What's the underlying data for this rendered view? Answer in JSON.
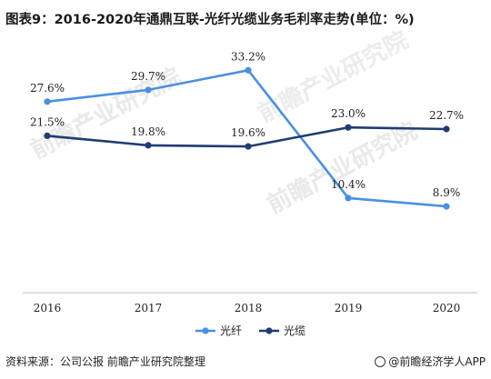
{
  "title": "图表9：2016-2020年通鼎互联-光纤光缆业务毛利率走势(单位：%)",
  "footer": {
    "source": "资料来源：公司公报 前瞻产业研究院整理",
    "brand": "@前瞻经济学人APP"
  },
  "watermark": "前瞻产业研究院",
  "chart_data": {
    "type": "line",
    "categories": [
      "2016",
      "2017",
      "2018",
      "2019",
      "2020"
    ],
    "series": [
      {
        "name": "光纤",
        "color": "#4a90e2",
        "values": [
          27.6,
          29.7,
          33.2,
          10.4,
          8.9
        ],
        "labels": [
          "27.6%",
          "29.7%",
          "33.2%",
          "10.4%",
          "8.9%"
        ]
      },
      {
        "name": "光缆",
        "color": "#1f3d73",
        "values": [
          21.5,
          19.8,
          19.6,
          23.0,
          22.7
        ],
        "labels": [
          "21.5%",
          "19.8%",
          "19.6%",
          "23.0%",
          "22.7%"
        ]
      }
    ],
    "ylim": [
      0,
      36
    ],
    "grid": false,
    "legend": "bottom-center"
  }
}
